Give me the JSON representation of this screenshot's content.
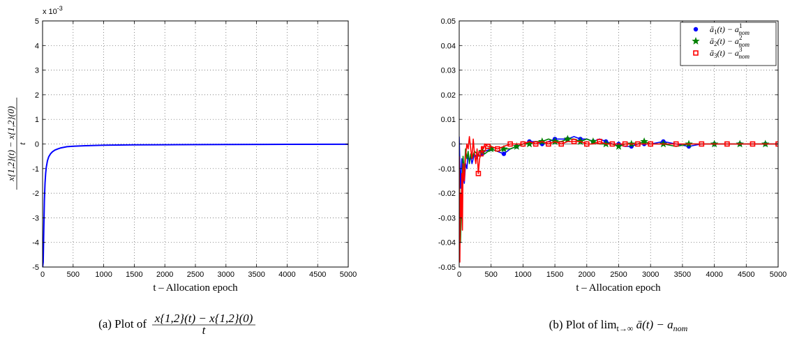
{
  "chart_data": [
    {
      "type": "line",
      "panel": "a",
      "xlabel": "t – Allocation epoch",
      "ylabel": "(x_{1,2}(t) − x_{1,2}(0)) / t",
      "ylabel_numerator": "x{1,2}(t) − x{1,2}(0)",
      "ylabel_denominator": "t",
      "exponent_label": "x 10",
      "exponent_power": "-3",
      "caption_prefix": "(a)  Plot of",
      "caption_numerator": "x{1,2}(t) − x{1,2}(0)",
      "caption_denominator": "t",
      "xlim": [
        0,
        5000
      ],
      "ylim": [
        -5,
        5
      ],
      "xticks": [
        "0",
        "500",
        "1000",
        "1500",
        "2000",
        "2500",
        "3000",
        "3500",
        "4000",
        "4500",
        "5000"
      ],
      "yticks": [
        "-5",
        "-4",
        "-3",
        "-2",
        "-1",
        "0",
        "1",
        "2",
        "3",
        "4",
        "5"
      ],
      "grid": true,
      "series": [
        {
          "color": "#0000ff",
          "x": [
            1,
            10,
            20,
            30,
            40,
            50,
            60,
            80,
            100,
            130,
            160,
            200,
            250,
            300,
            400,
            500,
            700,
            1000,
            1500,
            2000,
            3000,
            4000,
            5000
          ],
          "y": [
            -5.0,
            -4.8,
            -3.4,
            -2.3,
            -1.6,
            -1.2,
            -0.95,
            -0.68,
            -0.52,
            -0.4,
            -0.32,
            -0.25,
            -0.2,
            -0.16,
            -0.11,
            -0.09,
            -0.07,
            -0.05,
            -0.035,
            -0.03,
            -0.02,
            -0.015,
            -0.01
          ]
        }
      ]
    },
    {
      "type": "line",
      "panel": "b",
      "xlabel": "t – Allocation epoch",
      "caption_prefix": "(b)  Plot of lim",
      "caption_sub": "t→∞",
      "caption_rest": " ā(t) − a",
      "caption_sub2": "nom",
      "xlim": [
        0,
        5000
      ],
      "ylim": [
        -0.05,
        0.05
      ],
      "xticks": [
        "0",
        "500",
        "1000",
        "1500",
        "2000",
        "2500",
        "3000",
        "3500",
        "4000",
        "4500",
        "5000"
      ],
      "yticks": [
        "-0.05",
        "-0.04",
        "-0.03",
        "-0.02",
        "-0.01",
        "0",
        "0.01",
        "0.02",
        "0.03",
        "0.04",
        "0.05"
      ],
      "grid": true,
      "legend_position": "top-right",
      "reference_line": {
        "y": 0,
        "color": "#808080"
      },
      "series": [
        {
          "name": "ā1(t) − a1nom",
          "legend_main": "ā",
          "legend_idx": "1",
          "legend_sup": "1",
          "color": "#0000ff",
          "marker": "circle",
          "x": [
            0,
            20,
            40,
            60,
            80,
            100,
            120,
            140,
            160,
            180,
            200,
            240,
            280,
            320,
            360,
            400,
            500,
            600,
            700,
            800,
            900,
            1000,
            1100,
            1200,
            1300,
            1400,
            1500,
            1600,
            1700,
            1800,
            1900,
            2000,
            2100,
            2200,
            2300,
            2400,
            2500,
            2600,
            2700,
            2800,
            2900,
            3000,
            3200,
            3400,
            3600,
            3800,
            4000,
            4200,
            4400,
            4600,
            4800,
            5000
          ],
          "y": [
            0.003,
            -0.018,
            -0.006,
            -0.012,
            -0.016,
            -0.008,
            -0.01,
            -0.004,
            -0.007,
            -0.005,
            -0.008,
            -0.004,
            -0.006,
            -0.003,
            -0.004,
            -0.003,
            -0.002,
            -0.003,
            -0.004,
            -0.002,
            -0.001,
            0.0,
            0.001,
            0.001,
            0.0,
            0.001,
            0.002,
            0.002,
            0.002,
            0.003,
            0.002,
            0.002,
            0.001,
            0.002,
            0.001,
            0.0,
            0.0,
            -0.001,
            -0.001,
            0.0,
            0.0,
            0.0,
            0.001,
            0.0,
            -0.001,
            0.0,
            0.0,
            0.0,
            0.0,
            0.0,
            0.0,
            0.0
          ]
        },
        {
          "name": "ā2(t) − a2nom",
          "legend_main": "ā",
          "legend_idx": "2",
          "legend_sup": "2",
          "color": "#008000",
          "marker": "star",
          "x": [
            0,
            20,
            40,
            60,
            80,
            100,
            120,
            140,
            160,
            180,
            200,
            240,
            280,
            320,
            360,
            400,
            500,
            600,
            700,
            800,
            900,
            1000,
            1100,
            1200,
            1300,
            1400,
            1500,
            1600,
            1700,
            1800,
            1900,
            2000,
            2100,
            2200,
            2300,
            2400,
            2500,
            2600,
            2700,
            2800,
            2900,
            3000,
            3200,
            3400,
            3600,
            3800,
            4000,
            4200,
            4400,
            4600,
            4800,
            5000
          ],
          "y": [
            -0.01,
            -0.04,
            -0.02,
            -0.005,
            -0.012,
            -0.002,
            -0.006,
            -0.003,
            -0.008,
            -0.004,
            -0.006,
            -0.003,
            -0.004,
            -0.005,
            -0.003,
            -0.004,
            -0.002,
            -0.003,
            -0.002,
            -0.002,
            -0.001,
            0.0,
            0.0,
            0.001,
            0.001,
            0.002,
            0.001,
            0.001,
            0.002,
            0.002,
            0.001,
            0.002,
            0.001,
            0.0,
            0.0,
            0.0,
            -0.001,
            0.0,
            0.0,
            0.0,
            0.001,
            0.0,
            0.0,
            -0.001,
            0.0,
            0.0,
            0.0,
            0.0,
            0.0,
            0.0,
            0.0,
            0.0
          ]
        },
        {
          "name": "ā3(t) − a3nom",
          "legend_main": "ā",
          "legend_idx": "3",
          "legend_sup": "3",
          "color": "#ff0000",
          "marker": "square",
          "x": [
            0,
            10,
            20,
            30,
            40,
            50,
            60,
            80,
            100,
            120,
            140,
            160,
            180,
            200,
            220,
            240,
            260,
            280,
            300,
            320,
            340,
            360,
            380,
            400,
            450,
            500,
            600,
            700,
            800,
            900,
            1000,
            1100,
            1200,
            1300,
            1400,
            1500,
            1600,
            1700,
            1800,
            1900,
            2000,
            2100,
            2200,
            2300,
            2400,
            2500,
            2600,
            2700,
            2800,
            2900,
            3000,
            3200,
            3400,
            3600,
            3800,
            4000,
            4200,
            4400,
            4600,
            4800,
            5000
          ],
          "y": [
            -0.005,
            -0.048,
            -0.02,
            -0.03,
            -0.012,
            -0.035,
            -0.008,
            -0.015,
            -0.005,
            0.0,
            -0.002,
            0.003,
            -0.002,
            -0.006,
            0.002,
            -0.004,
            -0.008,
            -0.002,
            -0.012,
            -0.006,
            -0.004,
            -0.001,
            -0.002,
            0.0,
            -0.001,
            -0.001,
            -0.002,
            -0.001,
            0.0,
            0.0,
            0.0,
            0.001,
            0.0,
            0.001,
            0.0,
            0.001,
            0.0,
            0.001,
            0.001,
            0.001,
            0.0,
            0.0,
            0.001,
            0.0,
            0.0,
            0.0,
            0.0,
            0.0,
            0.0,
            0.0,
            0.0,
            0.0,
            0.0,
            0.0,
            0.0,
            0.0,
            0.0,
            0.0,
            0.0,
            0.0,
            0.0
          ]
        }
      ]
    }
  ]
}
